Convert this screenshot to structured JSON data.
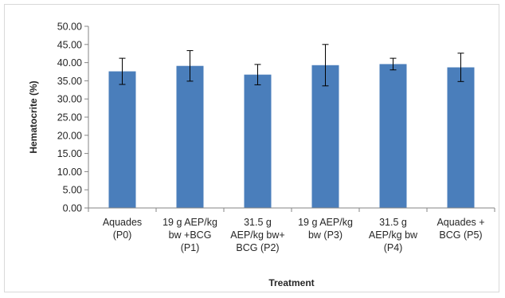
{
  "chart_data": {
    "type": "bar",
    "title": "",
    "xlabel": "Treatment",
    "ylabel": "Hematocrite (%)",
    "ylim": [
      0,
      50
    ],
    "yticks": [
      "0.00",
      "5.00",
      "10.00",
      "15.00",
      "20.00",
      "25.00",
      "30.00",
      "35.00",
      "40.00",
      "45.00",
      "50.00"
    ],
    "grid": false,
    "legend": "none",
    "bar_color": "#4a7ebb",
    "categories": [
      [
        "Aquades",
        "(P0)"
      ],
      [
        "19 g AEP/kg",
        "bw +BCG",
        "(P1)"
      ],
      [
        "31.5 g",
        "AEP/kg bw+",
        "BCG (P2)"
      ],
      [
        "19 g AEP/kg",
        "bw  (P3)"
      ],
      [
        "31.5 g",
        "AEP/kg bw",
        "(P4)"
      ],
      [
        "Aquades +",
        "BCG (P5)"
      ]
    ],
    "values": [
      37.6,
      39.1,
      36.7,
      39.3,
      39.6,
      38.7
    ],
    "errors": [
      3.6,
      4.2,
      2.8,
      5.7,
      1.6,
      3.9
    ]
  }
}
